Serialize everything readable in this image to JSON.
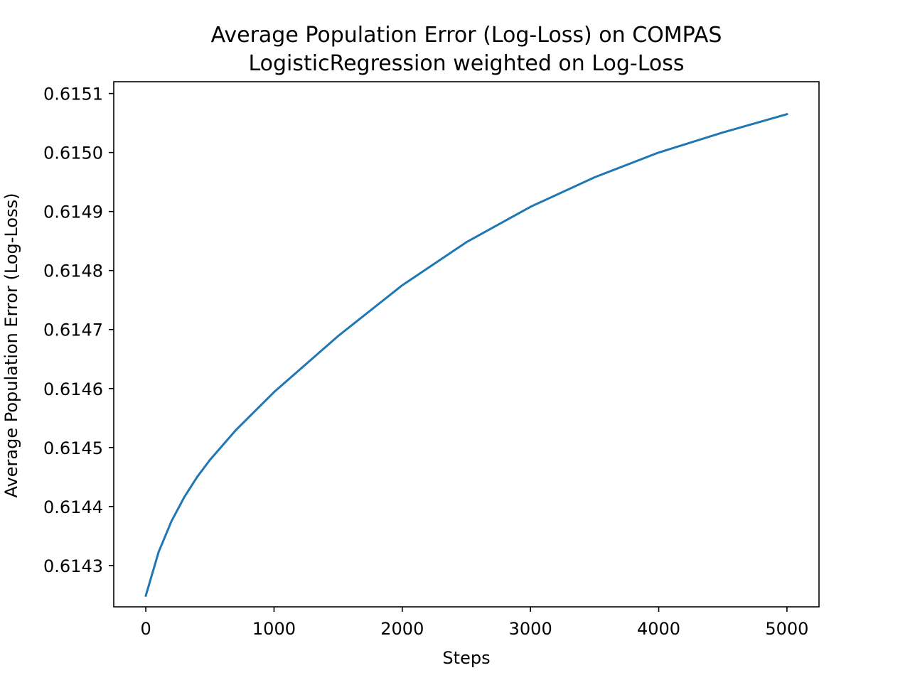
{
  "chart_data": {
    "type": "line",
    "title": "Average Population Error (Log-Loss) on COMPAS",
    "subtitle": "LogisticRegression weighted on Log-Loss",
    "xlabel": "Steps",
    "ylabel": "Average Population Error (Log-Loss)",
    "xlim": [
      -250,
      5250
    ],
    "ylim": [
      0.61423,
      0.61512
    ],
    "xticks": [
      0,
      1000,
      2000,
      3000,
      4000,
      5000
    ],
    "xtick_labels": [
      "0",
      "1000",
      "2000",
      "3000",
      "4000",
      "5000"
    ],
    "yticks": [
      0.6143,
      0.6144,
      0.6145,
      0.6146,
      0.6147,
      0.6148,
      0.6149,
      0.615,
      0.6151
    ],
    "ytick_labels": [
      "0.6143",
      "0.6144",
      "0.6145",
      "0.6146",
      "0.6147",
      "0.6148",
      "0.6149",
      "0.6150",
      "0.6151"
    ],
    "grid": false,
    "legend": false,
    "series": [
      {
        "color": "#1f77b4",
        "x": [
          0,
          100,
          200,
          300,
          400,
          500,
          700,
          1000,
          1500,
          2000,
          2500,
          3000,
          3500,
          4000,
          4500,
          5000
        ],
        "y": [
          0.614249,
          0.614323,
          0.614375,
          0.614416,
          0.61445,
          0.614479,
          0.614529,
          0.614594,
          0.614689,
          0.614775,
          0.614848,
          0.614908,
          0.614958,
          0.615,
          0.615034,
          0.615065
        ]
      }
    ]
  }
}
